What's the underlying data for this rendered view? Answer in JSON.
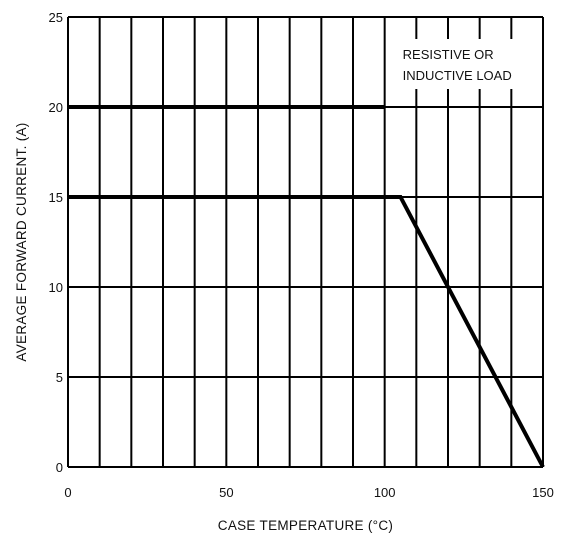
{
  "chart_data": {
    "type": "line",
    "title": "",
    "xlabel": "CASE TEMPERATURE (°C)",
    "ylabel": "AVERAGE FORWARD CURRENT. (A)",
    "xlim": [
      0,
      150
    ],
    "ylim": [
      0,
      25
    ],
    "x_ticks": [
      0,
      50,
      100,
      150
    ],
    "y_ticks": [
      0,
      5,
      10,
      15,
      20,
      25
    ],
    "x_grid_step": 10,
    "y_grid_step": 5,
    "grid": true,
    "series": [
      {
        "x": [
          0,
          100
        ],
        "y": [
          20,
          20
        ]
      },
      {
        "x": [
          0,
          105,
          150
        ],
        "y": [
          15,
          15,
          0
        ]
      }
    ],
    "annotations": [
      {
        "lines": [
          "RESISTIVE OR",
          "INDUCTIVE LOAD"
        ],
        "placement": "top-right"
      }
    ]
  }
}
